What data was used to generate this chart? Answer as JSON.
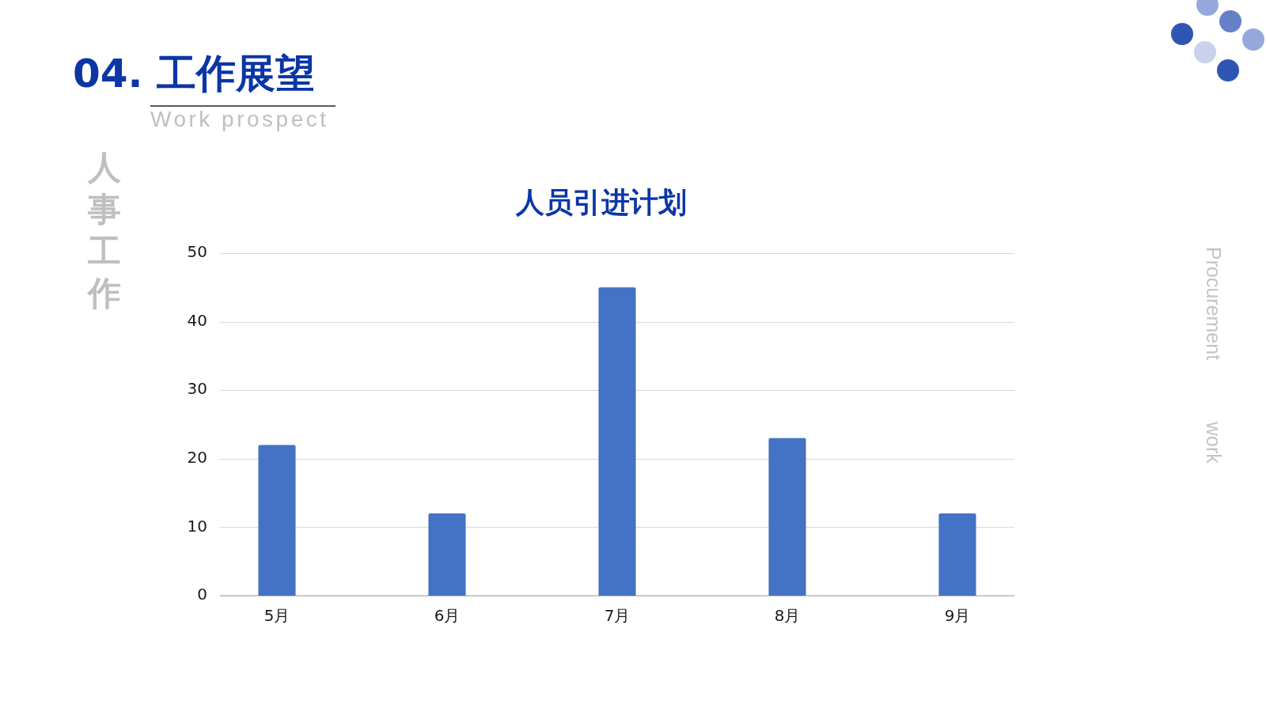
{
  "chart_data": {
    "type": "bar",
    "title": "人员引进计划",
    "categories": [
      "5月",
      "6月",
      "7月",
      "8月",
      "9月"
    ],
    "values": [
      22,
      12,
      45,
      23,
      12
    ],
    "color": "#4472c4",
    "ylim": [
      0,
      50
    ],
    "yticks": [
      0,
      10,
      20,
      30,
      40,
      50
    ],
    "grid": "y",
    "annotations": [
      "04. 工作展望",
      "Work prospect",
      "人事工作",
      "Procurement work"
    ]
  }
}
